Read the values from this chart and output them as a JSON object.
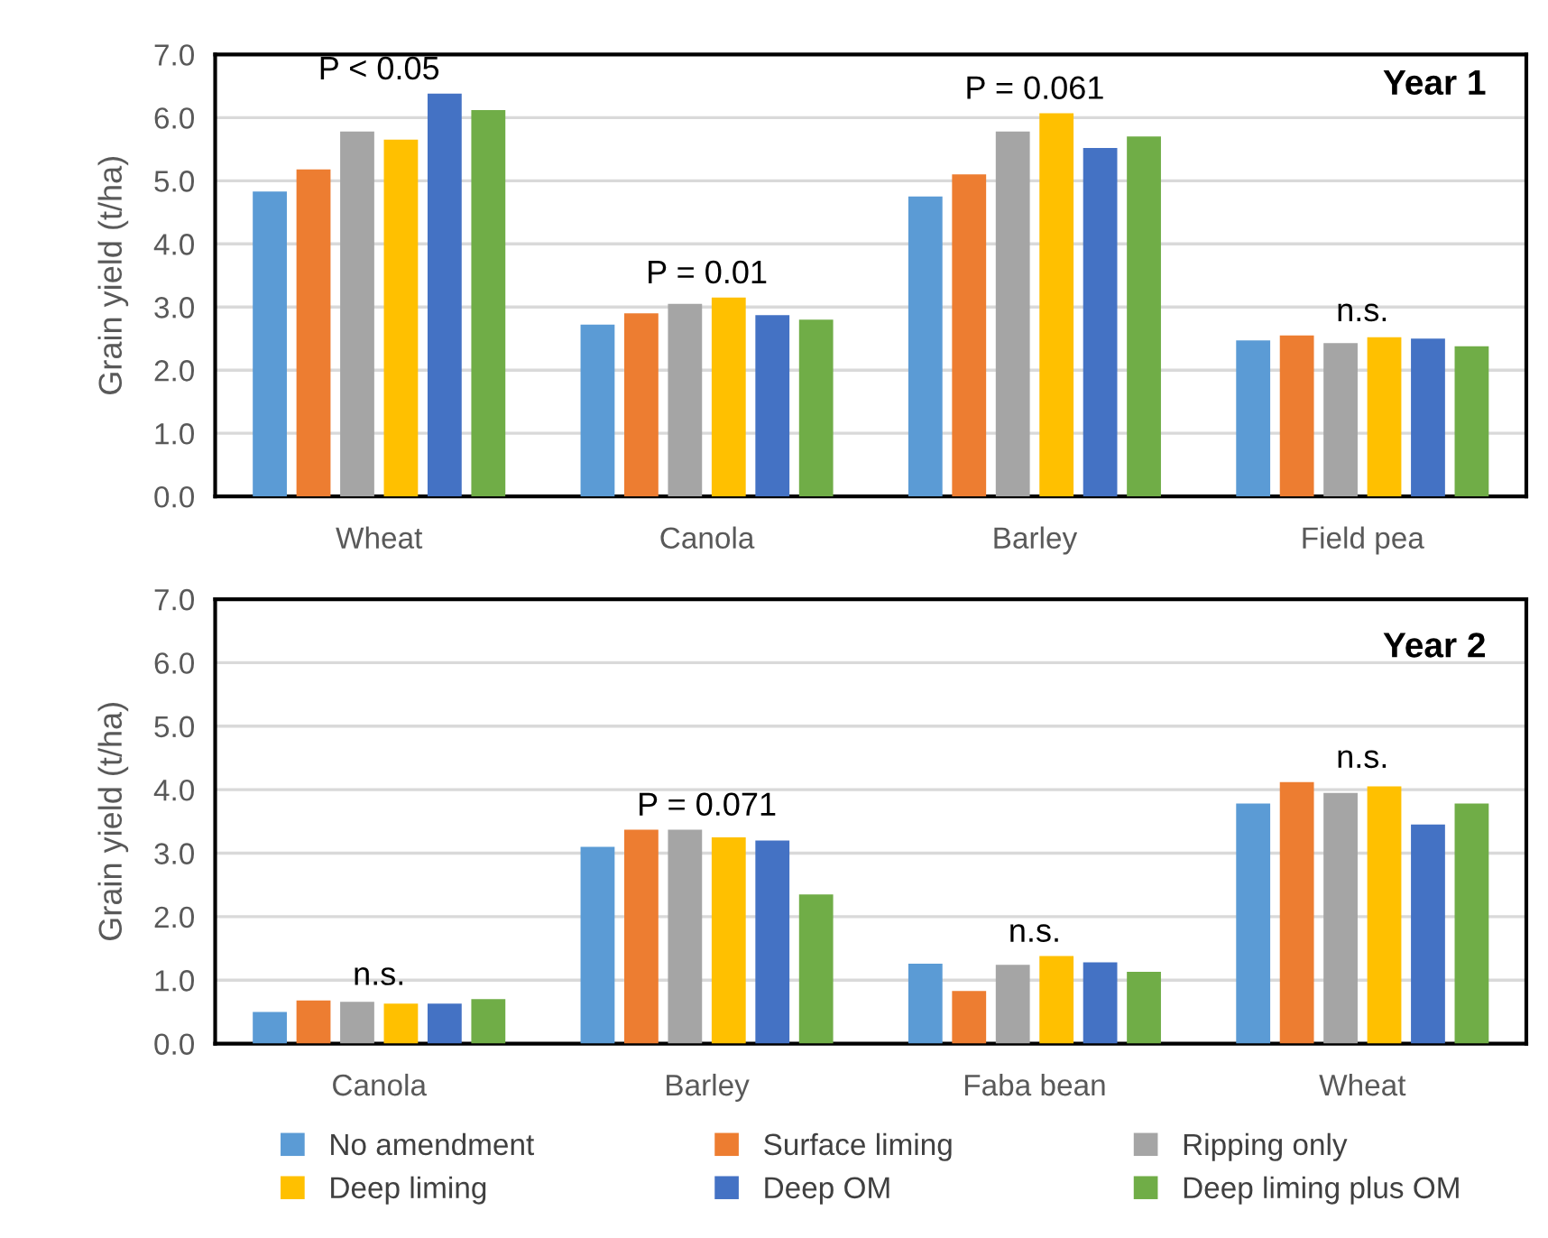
{
  "chart_data": [
    {
      "type": "bar",
      "ylabel": "Grain yield (t/ha)",
      "categories": [
        "Wheat",
        "Canola",
        "Barley",
        "Field pea"
      ],
      "ylim": [
        0,
        7
      ],
      "yticks": [
        {
          "value": 0,
          "label": "0.0"
        },
        {
          "value": 1,
          "label": "1.0"
        },
        {
          "value": 2,
          "label": "2.0"
        },
        {
          "value": 3,
          "label": "3.0"
        },
        {
          "value": 4,
          "label": "4.0"
        },
        {
          "value": 5,
          "label": "5.0"
        },
        {
          "value": 6,
          "label": "6.0"
        },
        {
          "value": 7,
          "label": "7.0"
        }
      ],
      "grid": "y",
      "legend": false,
      "series": [
        {
          "color": "#5b9bd5",
          "values": [
            4.83,
            2.72,
            4.75,
            2.47
          ]
        },
        {
          "color": "#ed7d31",
          "values": [
            5.18,
            2.9,
            5.1,
            2.55
          ]
        },
        {
          "color": "#a5a5a5",
          "values": [
            5.78,
            3.05,
            5.78,
            2.43
          ]
        },
        {
          "color": "#ffc000",
          "values": [
            5.65,
            3.15,
            6.07,
            2.52
          ]
        },
        {
          "color": "#4472c4",
          "values": [
            6.38,
            2.87,
            5.52,
            2.5
          ]
        },
        {
          "color": "#70ad47",
          "values": [
            6.12,
            2.8,
            5.7,
            2.38
          ]
        }
      ],
      "annotations": [
        "P < 0.05",
        "P = 0.01",
        "P = 0.061",
        "n.s.",
        "Year 1"
      ]
    },
    {
      "type": "bar",
      "ylabel": "Grain yield (t/ha)",
      "categories": [
        "Canola",
        "Barley",
        "Faba bean",
        "Wheat"
      ],
      "ylim": [
        0,
        7
      ],
      "yticks": [
        {
          "value": 0,
          "label": "0.0"
        },
        {
          "value": 1,
          "label": "1.0"
        },
        {
          "value": 2,
          "label": "2.0"
        },
        {
          "value": 3,
          "label": "3.0"
        },
        {
          "value": 4,
          "label": "4.0"
        },
        {
          "value": 5,
          "label": "5.0"
        },
        {
          "value": 6,
          "label": "6.0"
        },
        {
          "value": 7,
          "label": "7.0"
        }
      ],
      "grid": "y",
      "legend": "bottom",
      "series": [
        {
          "name": "No amendment",
          "color": "#5b9bd5",
          "values": [
            0.5,
            3.1,
            1.26,
            3.78
          ]
        },
        {
          "name": "Surface liming",
          "color": "#ed7d31",
          "values": [
            0.68,
            3.37,
            0.83,
            4.12
          ]
        },
        {
          "name": "Ripping only",
          "color": "#a5a5a5",
          "values": [
            0.66,
            3.37,
            1.24,
            3.95
          ]
        },
        {
          "name": "Deep liming",
          "color": "#ffc000",
          "values": [
            0.63,
            3.25,
            1.38,
            4.05
          ]
        },
        {
          "name": "Deep OM",
          "color": "#4472c4",
          "values": [
            0.63,
            3.2,
            1.28,
            3.45
          ]
        },
        {
          "name": "Deep liming plus OM",
          "color": "#70ad47",
          "values": [
            0.7,
            2.35,
            1.13,
            3.78
          ]
        }
      ],
      "annotations": [
        "n.s.",
        "P = 0.071",
        "n.s.",
        "n.s.",
        "Year 2"
      ]
    }
  ]
}
